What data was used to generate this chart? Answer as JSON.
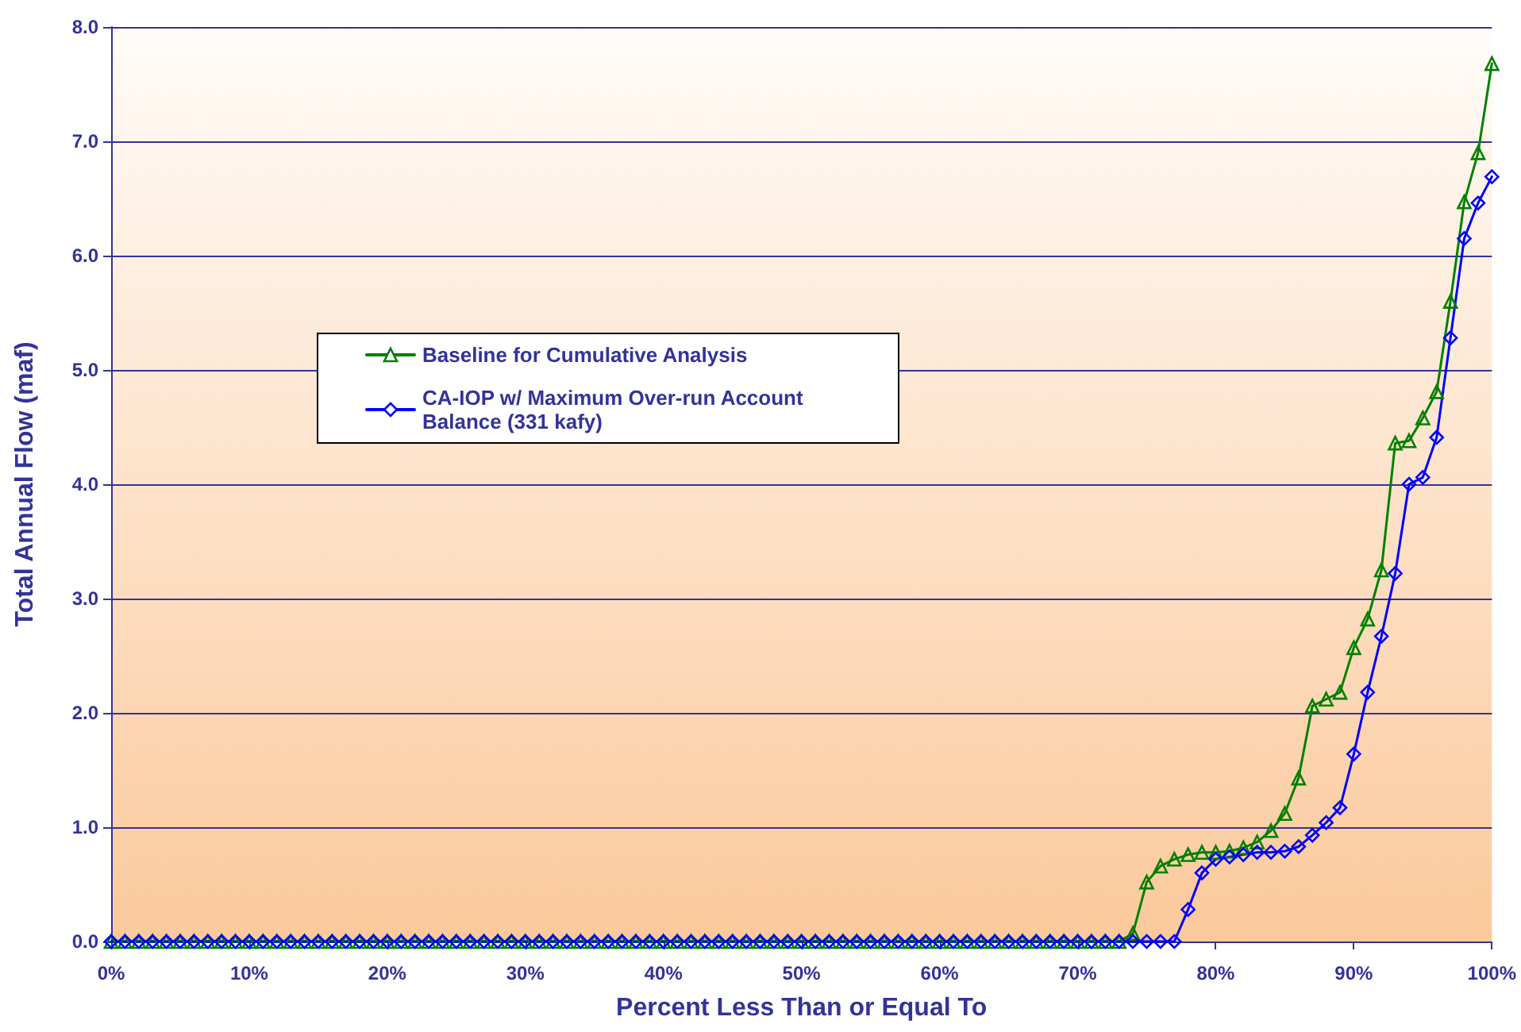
{
  "chart_data": {
    "type": "line",
    "xlabel": "Percent Less Than or Equal To",
    "ylabel": "Total Annual Flow (maf)",
    "x": [
      0,
      1,
      2,
      3,
      4,
      5,
      6,
      7,
      8,
      9,
      10,
      11,
      12,
      13,
      14,
      15,
      16,
      17,
      18,
      19,
      20,
      21,
      22,
      23,
      24,
      25,
      26,
      27,
      28,
      29,
      30,
      31,
      32,
      33,
      34,
      35,
      36,
      37,
      38,
      39,
      40,
      41,
      42,
      43,
      44,
      45,
      46,
      47,
      48,
      49,
      50,
      51,
      52,
      53,
      54,
      55,
      56,
      57,
      58,
      59,
      60,
      61,
      62,
      63,
      64,
      65,
      66,
      67,
      68,
      69,
      70,
      71,
      72,
      73,
      74,
      75,
      76,
      77,
      78,
      79,
      80,
      81,
      82,
      83,
      84,
      85,
      86,
      87,
      88,
      89,
      90,
      91,
      92,
      93,
      94,
      95,
      96,
      97,
      98,
      99,
      100
    ],
    "series": [
      {
        "name": "Baseline for Cumulative Analysis",
        "color": "#008000",
        "marker": "triangle",
        "values": [
          0,
          0,
          0,
          0,
          0,
          0,
          0,
          0,
          0,
          0,
          0,
          0,
          0,
          0,
          0,
          0,
          0,
          0,
          0,
          0,
          0,
          0,
          0,
          0,
          0,
          0,
          0,
          0,
          0,
          0,
          0,
          0,
          0,
          0,
          0,
          0,
          0,
          0,
          0,
          0,
          0,
          0,
          0,
          0,
          0,
          0,
          0,
          0,
          0,
          0,
          0,
          0,
          0,
          0,
          0,
          0,
          0,
          0,
          0,
          0,
          0,
          0,
          0,
          0,
          0,
          0,
          0,
          0,
          0,
          0,
          0,
          0,
          0,
          0,
          0.07,
          0.52,
          0.66,
          0.72,
          0.76,
          0.78,
          0.78,
          0.79,
          0.82,
          0.87,
          0.97,
          1.12,
          1.43,
          2.06,
          2.12,
          2.18,
          2.57,
          2.82,
          3.25,
          4.36,
          4.38,
          4.58,
          4.81,
          5.6,
          6.47,
          6.9,
          7.68
        ]
      },
      {
        "name": "CA-IOP w/ Maximum Over-run Account Balance (331 kafy)",
        "color": "#0000ff",
        "marker": "diamond",
        "values": [
          0,
          0,
          0,
          0,
          0,
          0,
          0,
          0,
          0,
          0,
          0,
          0,
          0,
          0,
          0,
          0,
          0,
          0,
          0,
          0,
          0,
          0,
          0,
          0,
          0,
          0,
          0,
          0,
          0,
          0,
          0,
          0,
          0,
          0,
          0,
          0,
          0,
          0,
          0,
          0,
          0,
          0,
          0,
          0,
          0,
          0,
          0,
          0,
          0,
          0,
          0,
          0,
          0,
          0,
          0,
          0,
          0,
          0,
          0,
          0,
          0,
          0,
          0,
          0,
          0,
          0,
          0,
          0,
          0,
          0,
          0,
          0,
          0,
          0,
          0,
          0,
          0,
          0,
          0.28,
          0.6,
          0.72,
          0.74,
          0.76,
          0.78,
          0.78,
          0.79,
          0.83,
          0.93,
          1.04,
          1.17,
          1.64,
          2.18,
          2.67,
          3.22,
          4.0,
          4.06,
          4.41,
          5.28,
          6.15,
          6.46,
          6.69
        ]
      }
    ],
    "xlim": [
      0,
      100
    ],
    "xticks": [
      {
        "value": 0,
        "label": "0%"
      },
      {
        "value": 10,
        "label": "10%"
      },
      {
        "value": 20,
        "label": "20%"
      },
      {
        "value": 30,
        "label": "30%"
      },
      {
        "value": 40,
        "label": "40%"
      },
      {
        "value": 50,
        "label": "50%"
      },
      {
        "value": 60,
        "label": "60%"
      },
      {
        "value": 70,
        "label": "70%"
      },
      {
        "value": 80,
        "label": "80%"
      },
      {
        "value": 90,
        "label": "90%"
      },
      {
        "value": 100,
        "label": "100%"
      }
    ],
    "ylim": [
      0,
      8
    ],
    "yticks": [
      {
        "value": 0,
        "label": "0.0"
      },
      {
        "value": 1,
        "label": "1.0"
      },
      {
        "value": 2,
        "label": "2.0"
      },
      {
        "value": 3,
        "label": "3.0"
      },
      {
        "value": 4,
        "label": "4.0"
      },
      {
        "value": 5,
        "label": "5.0"
      },
      {
        "value": 6,
        "label": "6.0"
      },
      {
        "value": 7,
        "label": "7.0"
      },
      {
        "value": 8,
        "label": "8.0"
      }
    ],
    "grid": "y",
    "legend": "center",
    "line_style": "solid"
  }
}
